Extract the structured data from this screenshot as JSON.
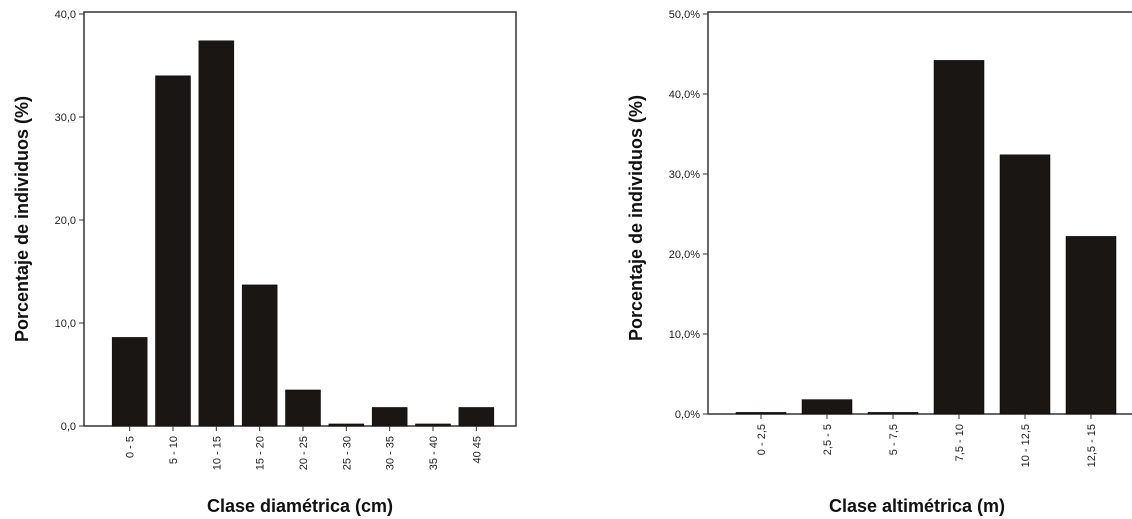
{
  "chart_data": [
    {
      "type": "bar",
      "title": "",
      "xlabel": "Clase diamétrica (cm)",
      "ylabel": "Porcentaje de individuos (%)",
      "categories": [
        "0 - 5",
        "5 - 10",
        "10 - 15",
        "15 - 20",
        "20 - 25",
        "25 - 30",
        "30 - 35",
        "35 - 40",
        "40 45"
      ],
      "values": [
        8.6,
        34.0,
        37.4,
        13.7,
        3.5,
        0.2,
        1.8,
        0.2,
        1.8
      ],
      "ylim": [
        0,
        40
      ],
      "yticks": [
        "0,0",
        "10,0",
        "20,0",
        "30,0",
        "40,0"
      ],
      "ytick_values": [
        0,
        10,
        20,
        30,
        40
      ],
      "bar_color": "#1a1614",
      "grid": false,
      "legend": "none"
    },
    {
      "type": "bar",
      "title": "",
      "xlabel": "Clase altimétrica (m)",
      "ylabel": "Porcentaje de individuos (%)",
      "categories": [
        "0 - 2,5",
        "2,5 - 5",
        "5 - 7,5",
        "7,5 - 10",
        "10 - 12,5",
        "12,5 - 15"
      ],
      "values": [
        0.2,
        1.8,
        0.2,
        44.2,
        32.4,
        22.2
      ],
      "ylim": [
        0,
        50
      ],
      "yticks": [
        "0,0%",
        "10,0%",
        "20,0%",
        "30,0%",
        "40,0%",
        "50,0%"
      ],
      "ytick_values": [
        0,
        10,
        20,
        30,
        40,
        50
      ],
      "bar_color": "#1a1614",
      "grid": false,
      "legend": "none"
    }
  ]
}
